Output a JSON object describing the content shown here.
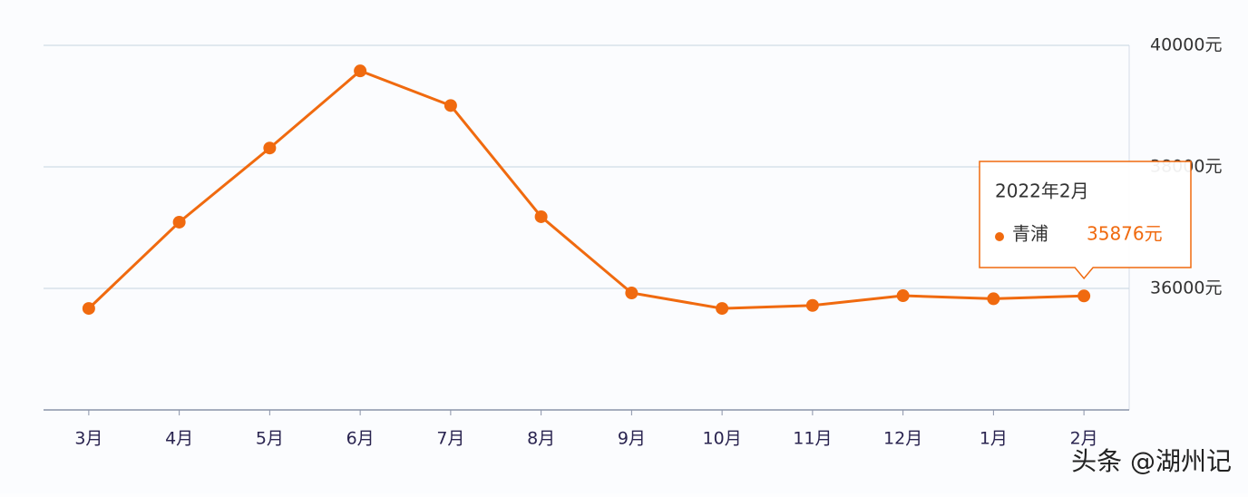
{
  "chart_data": {
    "type": "line",
    "categories": [
      "3月",
      "4月",
      "5月",
      "6月",
      "7月",
      "8月",
      "9月",
      "10月",
      "11月",
      "12月",
      "1月",
      "2月"
    ],
    "series": [
      {
        "name": "青浦",
        "color": "#f06a0f",
        "values": [
          35670,
          37090,
          38310,
          39580,
          39010,
          37180,
          35925,
          35670,
          35720,
          35880,
          35830,
          35876
        ],
        "value_labels": [
          null,
          null,
          null,
          null,
          null,
          null,
          null,
          null,
          null,
          null,
          null,
          "35876元"
        ]
      }
    ],
    "ylim": [
      34000,
      40000
    ],
    "yticks": [
      {
        "value": 36000,
        "label": "36000元"
      },
      {
        "value": 38000,
        "label": "38000元"
      },
      {
        "value": 40000,
        "label": "40000元"
      }
    ],
    "grid": true,
    "tooltip": {
      "title": "2022年2月"
    },
    "watermark": "头条 @湖州记"
  }
}
